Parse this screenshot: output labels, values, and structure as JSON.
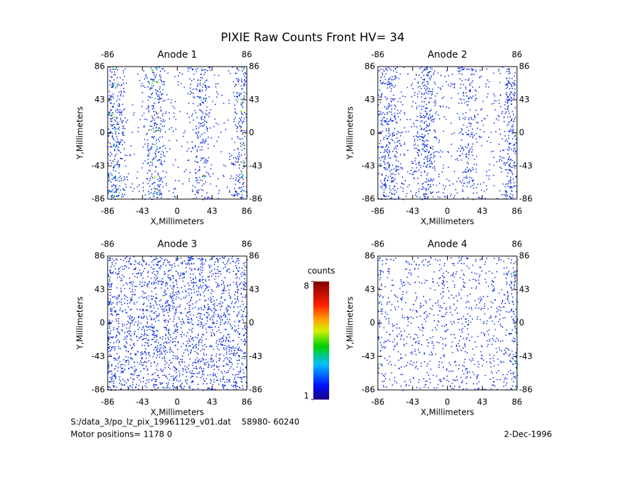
{
  "title": "PIXIE Raw Counts Front HV= 34",
  "chart_data": [
    {
      "type": "heatmap",
      "title": "Anode 1",
      "xlabel": "X,Millimeters",
      "ylabel": "Y,Millimeters",
      "xlim": [
        -86,
        86
      ],
      "ylim": [
        -86,
        86
      ],
      "xticks": [
        -86,
        -43,
        0,
        43,
        86
      ],
      "yticks": [
        -86,
        -43,
        0,
        43,
        86
      ],
      "x2ticks": [
        -86,
        86
      ]
    },
    {
      "type": "heatmap",
      "title": "Anode 2",
      "xlabel": "X,Millimeters",
      "ylabel": "Y,Millimeters",
      "xlim": [
        -86,
        86
      ],
      "ylim": [
        -86,
        86
      ],
      "xticks": [
        -86,
        -43,
        0,
        43,
        86
      ],
      "yticks": [
        -86,
        -43,
        0,
        43,
        86
      ],
      "x2ticks": [
        -86,
        86
      ]
    },
    {
      "type": "heatmap",
      "title": "Anode 3",
      "xlabel": "X,Millimeters",
      "ylabel": "Y,Millimeters",
      "xlim": [
        -86,
        86
      ],
      "ylim": [
        -86,
        86
      ],
      "xticks": [
        -86,
        -43,
        0,
        43,
        86
      ],
      "yticks": [
        -86,
        -43,
        0,
        43,
        86
      ],
      "x2ticks": [
        -86,
        86
      ]
    },
    {
      "type": "heatmap",
      "title": "Anode 4",
      "xlabel": "X,Millimeters",
      "ylabel": "Y,Millimeters",
      "xlim": [
        -86,
        86
      ],
      "ylim": [
        -86,
        86
      ],
      "xticks": [
        -86,
        -43,
        0,
        43,
        86
      ],
      "yticks": [
        -86,
        -43,
        0,
        43,
        86
      ],
      "x2ticks": [
        -86,
        86
      ]
    }
  ],
  "colorbar": {
    "label": "counts",
    "lim": [
      1,
      8
    ],
    "ticks": [
      1,
      8
    ]
  },
  "footer": {
    "file": "S:/data_3/po_lz_pix_19961129_v01.dat    58980- 60240",
    "motor": "Motor positions= 1178 0",
    "date": "2-Dec-1996"
  }
}
